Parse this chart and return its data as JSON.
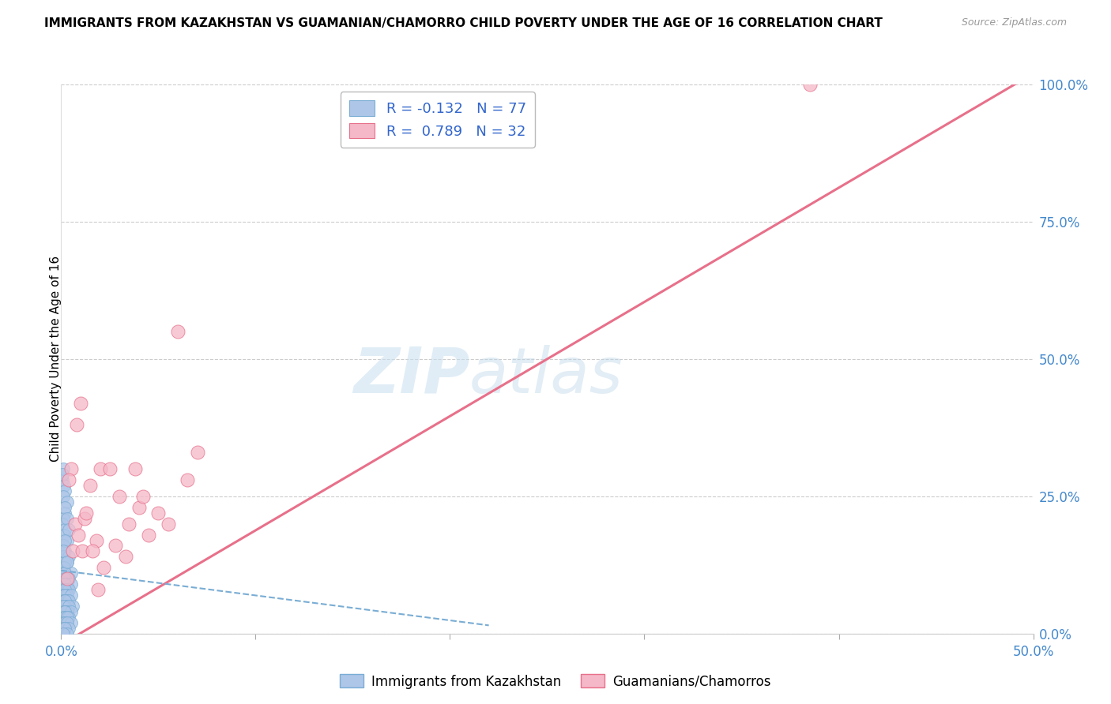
{
  "title": "IMMIGRANTS FROM KAZAKHSTAN VS GUAMANIAN/CHAMORRO CHILD POVERTY UNDER THE AGE OF 16 CORRELATION CHART",
  "source": "Source: ZipAtlas.com",
  "ylabel": "Child Poverty Under the Age of 16",
  "legend1_label": "Immigrants from Kazakhstan",
  "legend2_label": "Guamanians/Chamorros",
  "R1": -0.132,
  "N1": 77,
  "R2": 0.789,
  "N2": 32,
  "blue_color": "#aec6e8",
  "pink_color": "#f5b8c8",
  "blue_line_color": "#7aadd4",
  "pink_line_color": "#e8708a",
  "watermark_zip": "ZIP",
  "watermark_atlas": "atlas",
  "xlim": [
    0.0,
    0.5
  ],
  "ylim": [
    0.0,
    1.0
  ],
  "right_ytick_vals": [
    0.0,
    0.25,
    0.5,
    0.75,
    1.0
  ],
  "right_ytick_labels": [
    "0.0%",
    "25.0%",
    "50.0%",
    "75.0%",
    "100.0%"
  ],
  "pink_line_x": [
    0.0,
    0.5
  ],
  "pink_line_y": [
    -0.02,
    1.02
  ],
  "blue_line_x": [
    0.0,
    0.22
  ],
  "blue_line_y": [
    0.115,
    0.015
  ],
  "blue_scatter_x": [
    0.0005,
    0.001,
    0.0015,
    0.0008,
    0.002,
    0.0012,
    0.003,
    0.0018,
    0.001,
    0.0005,
    0.002,
    0.0015,
    0.003,
    0.001,
    0.002,
    0.0008,
    0.0012,
    0.004,
    0.003,
    0.002,
    0.001,
    0.0015,
    0.005,
    0.0008,
    0.002,
    0.003,
    0.004,
    0.002,
    0.001,
    0.003,
    0.005,
    0.002,
    0.001,
    0.003,
    0.004,
    0.002,
    0.001,
    0.003,
    0.002,
    0.005,
    0.001,
    0.002,
    0.003,
    0.004,
    0.002,
    0.001,
    0.006,
    0.003,
    0.002,
    0.001,
    0.004,
    0.003,
    0.002,
    0.001,
    0.005,
    0.002,
    0.003,
    0.001,
    0.002,
    0.004,
    0.003,
    0.001,
    0.002,
    0.005,
    0.003,
    0.002,
    0.001,
    0.004,
    0.002,
    0.003,
    0.001,
    0.002,
    0.003,
    0.004,
    0.002,
    0.001,
    0.003
  ],
  "blue_scatter_y": [
    0.28,
    0.3,
    0.27,
    0.29,
    0.26,
    0.25,
    0.24,
    0.22,
    0.21,
    0.2,
    0.19,
    0.18,
    0.17,
    0.16,
    0.15,
    0.15,
    0.14,
    0.14,
    0.13,
    0.13,
    0.12,
    0.12,
    0.11,
    0.11,
    0.11,
    0.1,
    0.1,
    0.1,
    0.09,
    0.09,
    0.09,
    0.09,
    0.08,
    0.08,
    0.08,
    0.08,
    0.07,
    0.07,
    0.07,
    0.07,
    0.06,
    0.06,
    0.06,
    0.06,
    0.06,
    0.05,
    0.05,
    0.05,
    0.05,
    0.05,
    0.05,
    0.04,
    0.04,
    0.04,
    0.04,
    0.04,
    0.03,
    0.03,
    0.03,
    0.03,
    0.03,
    0.02,
    0.02,
    0.02,
    0.02,
    0.01,
    0.01,
    0.01,
    0.01,
    0.0,
    0.0,
    0.23,
    0.21,
    0.19,
    0.17,
    0.15,
    0.13
  ],
  "pink_scatter_x": [
    0.005,
    0.004,
    0.01,
    0.008,
    0.015,
    0.02,
    0.007,
    0.012,
    0.006,
    0.018,
    0.025,
    0.003,
    0.03,
    0.009,
    0.013,
    0.022,
    0.035,
    0.011,
    0.04,
    0.016,
    0.045,
    0.028,
    0.05,
    0.033,
    0.019,
    0.055,
    0.06,
    0.038,
    0.065,
    0.042,
    0.07,
    0.385
  ],
  "pink_scatter_y": [
    0.3,
    0.28,
    0.42,
    0.38,
    0.27,
    0.3,
    0.2,
    0.21,
    0.15,
    0.17,
    0.3,
    0.1,
    0.25,
    0.18,
    0.22,
    0.12,
    0.2,
    0.15,
    0.23,
    0.15,
    0.18,
    0.16,
    0.22,
    0.14,
    0.08,
    0.2,
    0.55,
    0.3,
    0.28,
    0.25,
    0.33,
    1.0
  ]
}
